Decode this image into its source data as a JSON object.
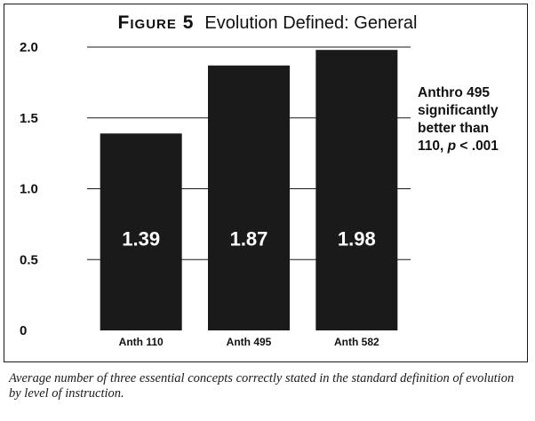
{
  "figure": {
    "label": "Figure 5",
    "title": "Evolution Defined: General"
  },
  "annotation": {
    "line1": "Anthro 495",
    "line2": "significantly",
    "line3": "better than",
    "line4_prefix": "110, ",
    "line4_p": "p",
    "line4_suffix": " < .001"
  },
  "caption": "Average number of three essential concepts correctly stated in the standard definition of evolution by level of instruction.",
  "chart_data": {
    "type": "bar",
    "categories": [
      "Anth 110",
      "Anth 495",
      "Anth 582"
    ],
    "values": [
      1.39,
      1.87,
      1.98
    ],
    "data_labels": [
      "1.39",
      "1.87",
      "1.98"
    ],
    "title": "Evolution Defined: General",
    "xlabel": "",
    "ylabel": "",
    "ylim": [
      0,
      2.0
    ],
    "yticks": [
      0,
      0.5,
      1.0,
      1.5,
      2.0
    ],
    "ytick_labels": [
      "0",
      "0.5",
      "1.0",
      "1.5",
      "2.0"
    ],
    "grid": true,
    "bar_color": "#1a1a1a",
    "label_color": "#ffffff"
  }
}
